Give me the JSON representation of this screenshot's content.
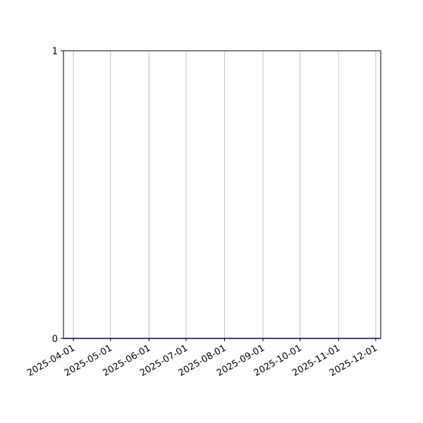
{
  "chart_data": {
    "type": "line",
    "title": "",
    "xlabel": "",
    "ylabel": "",
    "x_type": "date",
    "xlim": [
      "2025-03-24",
      "2025-12-05"
    ],
    "ylim": [
      0,
      1
    ],
    "x_ticks": [
      "2025-04-01",
      "2025-05-01",
      "2025-06-01",
      "2025-07-01",
      "2025-08-01",
      "2025-09-01",
      "2025-10-01",
      "2025-11-01",
      "2025-12-01"
    ],
    "y_ticks": [
      "0",
      "1"
    ],
    "grid": {
      "x": true,
      "y": false
    },
    "series": [
      {
        "x": [
          "2025-03-24",
          "2025-12-05"
        ],
        "y": [
          0,
          0
        ],
        "color": "#0000ff"
      }
    ]
  }
}
